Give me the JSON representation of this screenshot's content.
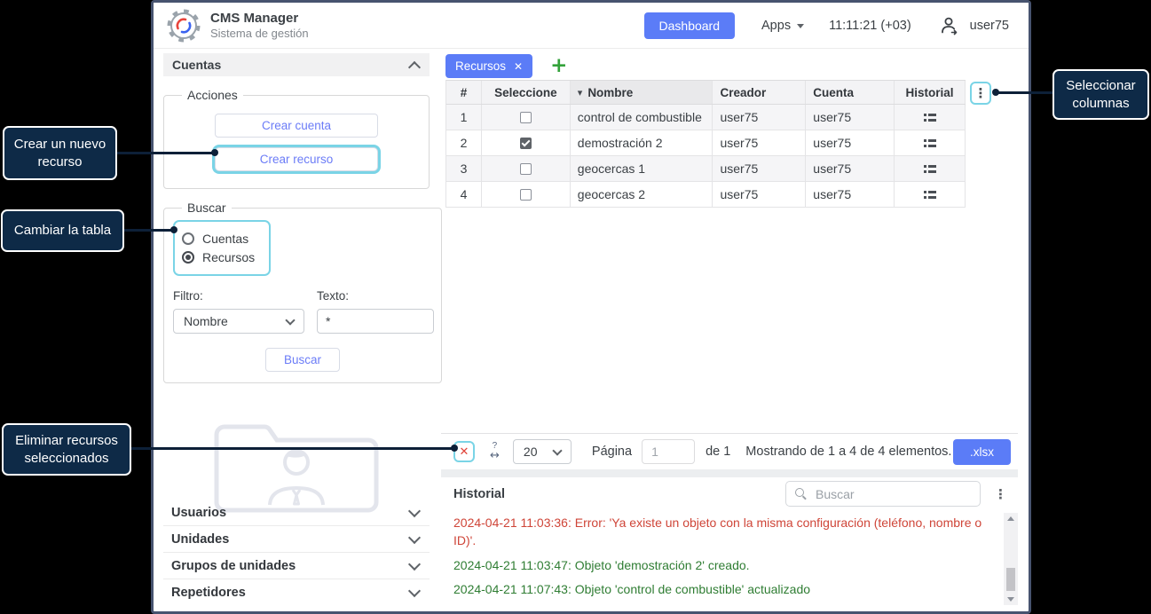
{
  "colors": {
    "accent_blue": "#5b7cf7",
    "highlight_cyan": "#7ad4e6",
    "callout_navy": "#0e2a47",
    "error_red": "#cf4538",
    "success_green": "#2f7d33",
    "link_blue": "#6b7cf7",
    "plus_green": "#33a23a"
  },
  "header": {
    "app_name": "CMS Manager",
    "app_subtitle": "Sistema de gestión",
    "dashboard_label": "Dashboard",
    "apps_label": "Apps",
    "time": "11:11:21 (+03)",
    "username": "user75"
  },
  "sidebar": {
    "section_title": "Cuentas",
    "acciones": {
      "legend": "Acciones",
      "buttons": [
        {
          "label": "Crear cuenta",
          "highlighted": false
        },
        {
          "label": "Crear recurso",
          "highlighted": true
        }
      ]
    },
    "buscar": {
      "legend": "Buscar",
      "radios": [
        {
          "label": "Cuentas",
          "selected": false
        },
        {
          "label": "Recursos",
          "selected": true
        }
      ],
      "filtro_label": "Filtro:",
      "filtro_value": "Nombre",
      "texto_label": "Texto:",
      "texto_value": "*",
      "buscar_button": "Buscar"
    },
    "nav_items": [
      "Usuarios",
      "Unidades",
      "Grupos de unidades",
      "Repetidores"
    ]
  },
  "main": {
    "tab_label": "Recursos",
    "table": {
      "columns": [
        "#",
        "Seleccione",
        "Nombre",
        "Creador",
        "Cuenta",
        "Historial"
      ],
      "sorted_column": "Nombre",
      "rows": [
        {
          "num": "1",
          "selected": false,
          "nombre": "control de combustible",
          "creador": "user75",
          "cuenta": "user75"
        },
        {
          "num": "2",
          "selected": true,
          "nombre": "demostración 2",
          "creador": "user75",
          "cuenta": "user75"
        },
        {
          "num": "3",
          "selected": false,
          "nombre": "geocercas 1",
          "creador": "user75",
          "cuenta": "user75"
        },
        {
          "num": "4",
          "selected": false,
          "nombre": "geocercas 2",
          "creador": "user75",
          "cuenta": "user75"
        }
      ]
    },
    "footer": {
      "page_size": "20",
      "pagina_label": "Página",
      "page_value": "1",
      "of_label": "de 1",
      "showing_text": "Mostrando de 1 a 4 de 4 elementos.",
      "export_label": ".xlsx"
    }
  },
  "historial": {
    "title": "Historial",
    "search_placeholder": "Buscar",
    "logs": [
      {
        "type": "error",
        "text": "2024-04-21 11:03:36: Error: 'Ya existe un objeto con la misma configuración (teléfono, nombre o ID)'."
      },
      {
        "type": "success",
        "text": "2024-04-21 11:03:47: Objeto 'demostración 2' creado."
      },
      {
        "type": "success",
        "text": "2024-04-21 11:07:43: Objeto 'control de combustible' actualizado"
      }
    ]
  },
  "callouts": {
    "create_resource": {
      "text": "Crear un nuevo recurso"
    },
    "change_table": {
      "text": "Cambiar la tabla"
    },
    "delete_selected": {
      "text": "Eliminar recursos seleccionados"
    },
    "select_columns": {
      "text": "Seleccionar columnas"
    }
  },
  "icons": {
    "close": "✕",
    "add": "+",
    "kebab": "⋮",
    "sort_desc": "▾",
    "delete_cross": "✕",
    "fit_question": "?",
    "fit_arrows": "↔"
  }
}
